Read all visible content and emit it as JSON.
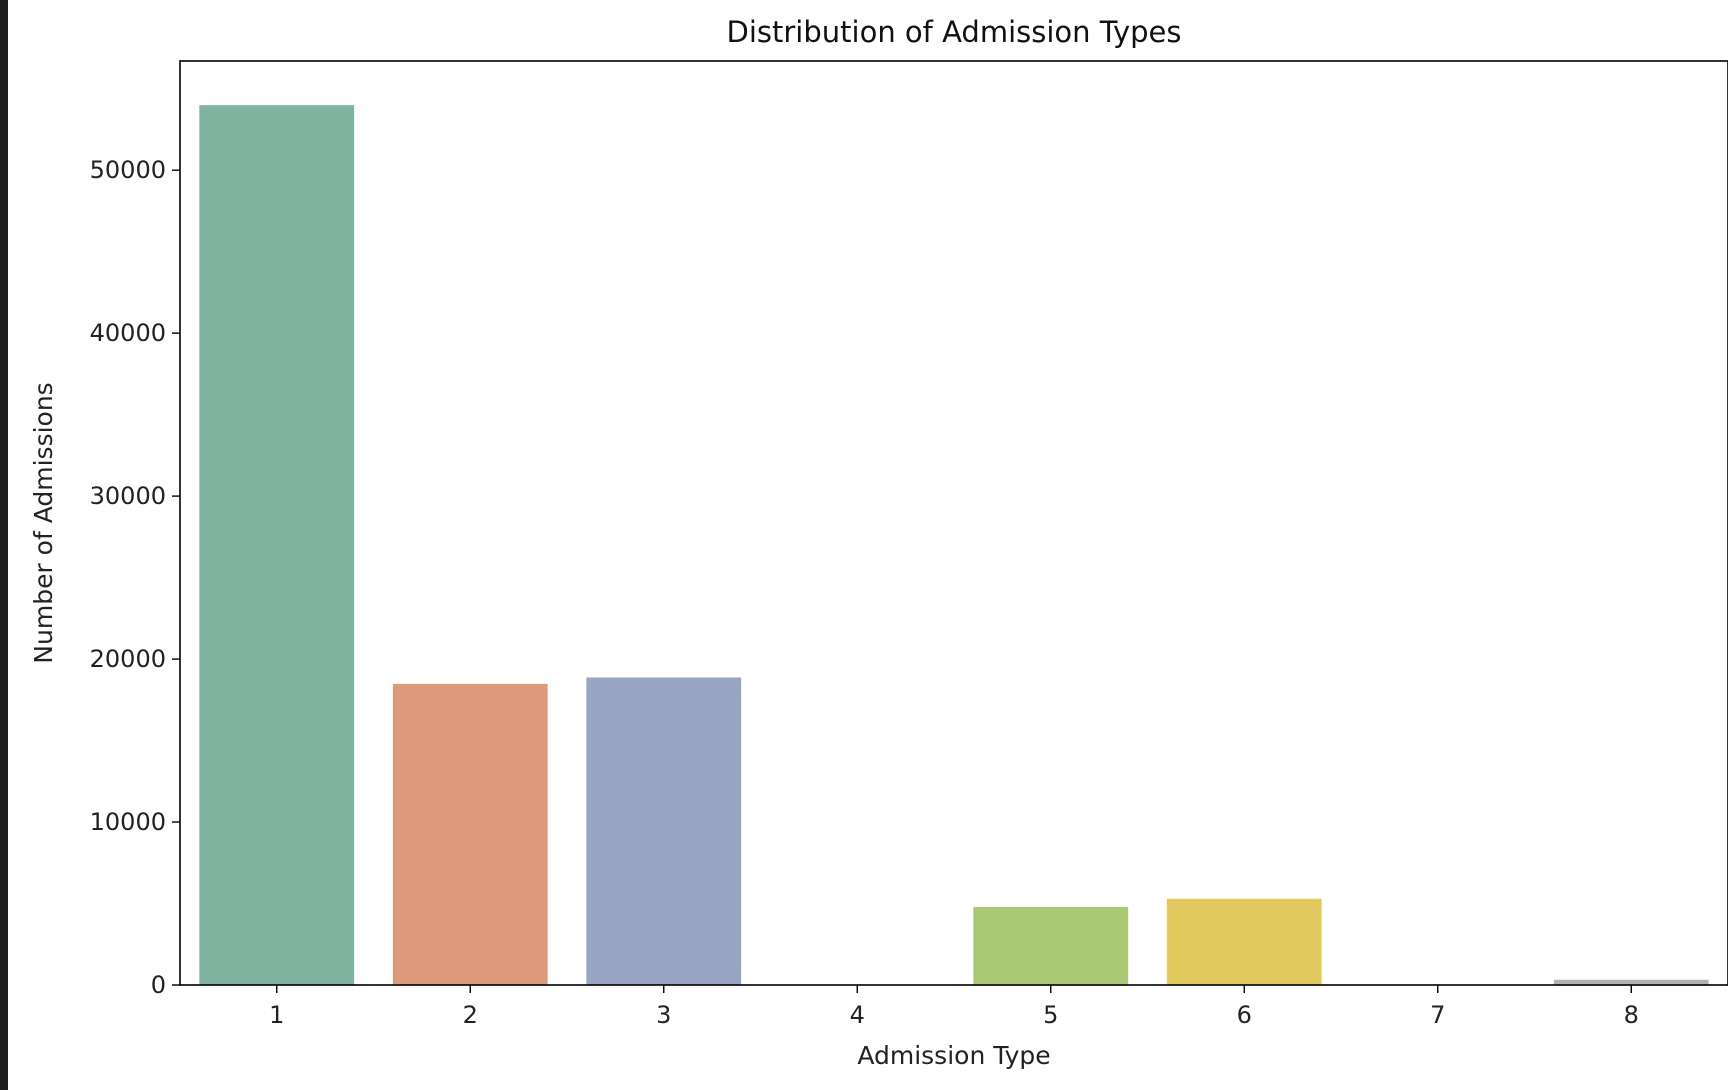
{
  "chart_data": {
    "type": "bar",
    "title": "Distribution of Admission Types",
    "xlabel": "Admission Type",
    "ylabel": "Number of Admissions",
    "categories": [
      "1",
      "2",
      "3",
      "4",
      "5",
      "6",
      "7",
      "8"
    ],
    "values": [
      53990,
      18480,
      18870,
      10,
      4790,
      5290,
      20,
      320
    ],
    "colors": [
      "#7fb3a0",
      "#dd9a7a",
      "#98a4c2",
      "#c38bb8",
      "#aac876",
      "#e1c95f",
      "#d8b98c",
      "#b3b3b3"
    ],
    "yticks": [
      0,
      10000,
      20000,
      30000,
      40000,
      50000
    ],
    "ylim": [
      0,
      56700
    ],
    "grid": false,
    "legend": "none"
  }
}
